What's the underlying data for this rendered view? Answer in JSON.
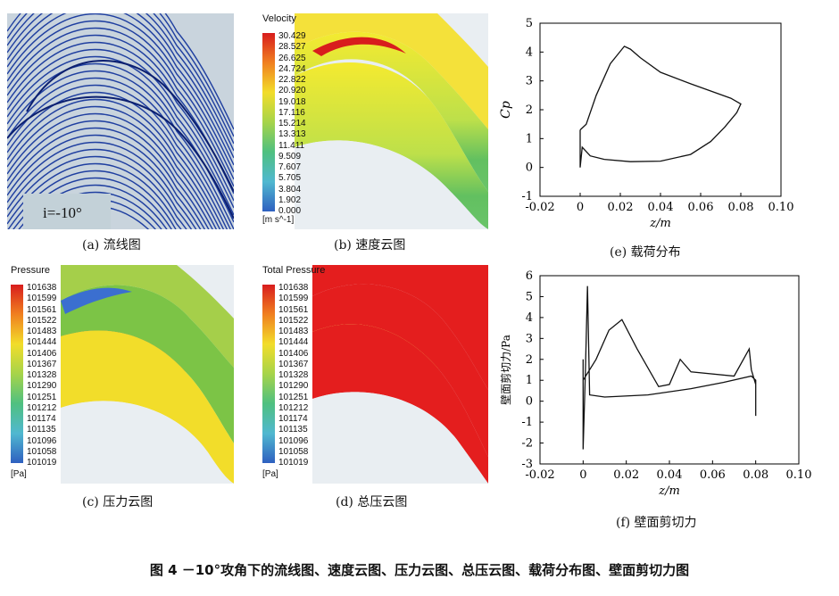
{
  "panels": {
    "a": {
      "caption": "(a)  流线图",
      "label": "i=-10°"
    },
    "b": {
      "caption": "(b)  速度云图",
      "title": "Velocity",
      "unit": "[m s^-1]",
      "levels": [
        "30.429",
        "28.527",
        "26.625",
        "24.724",
        "22.822",
        "20.920",
        "19.018",
        "17.116",
        "15.214",
        "13.313",
        "11.411",
        "9.509",
        "7.607",
        "5.705",
        "3.804",
        "1.902",
        "0.000"
      ]
    },
    "c": {
      "caption": "(c)  压力云图",
      "title": "Pressure",
      "unit": "[Pa]",
      "levels": [
        "101638",
        "101599",
        "101561",
        "101522",
        "101483",
        "101444",
        "101406",
        "101367",
        "101328",
        "101290",
        "101251",
        "101212",
        "101174",
        "101135",
        "101096",
        "101058",
        "101019"
      ]
    },
    "d": {
      "caption": "(d)  总压云图",
      "title": "Total Pressure",
      "unit": "[Pa]",
      "levels": [
        "101638",
        "101599",
        "101561",
        "101522",
        "101483",
        "101444",
        "101406",
        "101367",
        "101328",
        "101290",
        "101251",
        "101212",
        "101174",
        "101135",
        "101096",
        "101058",
        "101019"
      ]
    },
    "e": {
      "caption": "(e)  载荷分布"
    },
    "f": {
      "caption": "(f)  壁面剪切力"
    }
  },
  "figure_caption": "图 4    －10°攻角下的流线图、速度云图、压力云图、总压云图、载荷分布图、壁面剪切力图",
  "colors": {
    "streamline": "#1f3fa0",
    "velocity_high": "#d81d1d",
    "velocity_mid": "#f2dd2a",
    "low": "#2f7fd0"
  },
  "chart_data": [
    {
      "type": "line",
      "ylabel": "Cp",
      "xlabel": "z/m",
      "xlim": [
        -0.02,
        0.1
      ],
      "ylim": [
        -1,
        5
      ],
      "xticks": [
        "-0.02",
        "0",
        "0.02",
        "0.04",
        "0.06",
        "0.08",
        "0.10"
      ],
      "yticks": [
        "-1",
        "0",
        "1",
        "2",
        "3",
        "4",
        "5"
      ],
      "series": [
        {
          "values": [
            [
              0.0,
              1.3
            ],
            [
              0.0,
              0.0
            ],
            [
              0.001,
              0.7
            ],
            [
              0.005,
              0.4
            ],
            [
              0.012,
              0.28
            ],
            [
              0.025,
              0.2
            ],
            [
              0.04,
              0.22
            ],
            [
              0.055,
              0.45
            ],
            [
              0.065,
              0.9
            ],
            [
              0.072,
              1.4
            ],
            [
              0.078,
              1.9
            ],
            [
              0.08,
              2.2
            ],
            [
              0.075,
              2.4
            ],
            [
              0.055,
              2.9
            ],
            [
              0.04,
              3.3
            ],
            [
              0.03,
              3.8
            ],
            [
              0.025,
              4.1
            ],
            [
              0.022,
              4.2
            ],
            [
              0.015,
              3.6
            ],
            [
              0.008,
              2.5
            ],
            [
              0.003,
              1.5
            ],
            [
              0.0,
              1.3
            ]
          ]
        }
      ]
    },
    {
      "type": "line",
      "ylabel": "壁面剪切力/Pa",
      "xlabel": "z/m",
      "xlim": [
        -0.02,
        0.1
      ],
      "ylim": [
        -3,
        6
      ],
      "xticks": [
        "-0.02",
        "0",
        "0.02",
        "0.04",
        "0.06",
        "0.08",
        "0.10"
      ],
      "yticks": [
        "-3",
        "-2",
        "-1",
        "0",
        "1",
        "2",
        "3",
        "4",
        "5",
        "6"
      ],
      "series": [
        {
          "values": [
            [
              0.0,
              2.0
            ],
            [
              0.0,
              -2.3
            ],
            [
              0.001,
              1.3
            ],
            [
              0.002,
              5.5
            ],
            [
              0.003,
              0.3
            ],
            [
              0.01,
              0.2
            ],
            [
              0.03,
              0.3
            ],
            [
              0.05,
              0.6
            ],
            [
              0.065,
              0.9
            ],
            [
              0.078,
              1.2
            ],
            [
              0.08,
              1.0
            ],
            [
              0.08,
              -0.7
            ],
            [
              0.08,
              0.8
            ],
            [
              0.078,
              1.5
            ],
            [
              0.077,
              2.5
            ],
            [
              0.07,
              1.2
            ],
            [
              0.05,
              1.4
            ],
            [
              0.045,
              2.0
            ],
            [
              0.04,
              0.8
            ],
            [
              0.035,
              0.7
            ],
            [
              0.025,
              2.5
            ],
            [
              0.018,
              3.9
            ],
            [
              0.012,
              3.4
            ],
            [
              0.006,
              2.0
            ],
            [
              0.0,
              1.0
            ]
          ]
        }
      ]
    }
  ]
}
